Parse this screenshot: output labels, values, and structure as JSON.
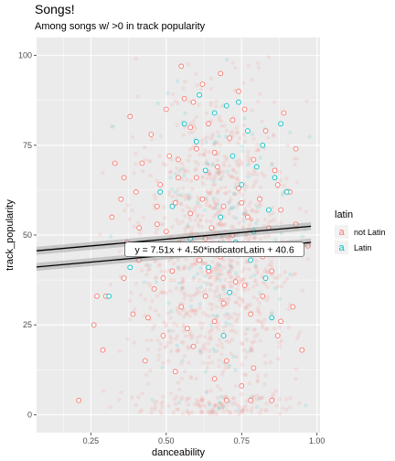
{
  "chart_data": {
    "type": "scatter",
    "title": "Songs!",
    "subtitle": "Among songs w/ >0 in track popularity",
    "xlabel": "danceability",
    "ylabel": "track_popularity",
    "xlim": [
      0.07,
      1.01
    ],
    "ylim": [
      -5,
      105
    ],
    "x_ticks": [
      0.25,
      0.5,
      0.75,
      1.0
    ],
    "x_tick_labels": [
      "0.25",
      "0.50",
      "0.75",
      "1.00"
    ],
    "y_ticks": [
      0,
      25,
      50,
      75,
      100
    ],
    "y_tick_labels": [
      "0",
      "25",
      "50",
      "75",
      "100"
    ],
    "grid": true,
    "background": "#ebebeb",
    "legend": {
      "title": "latin",
      "placement": "right",
      "entries": [
        {
          "label": "not Latin",
          "glyph": "a",
          "color": "#F8766D"
        },
        {
          "label": "Latin",
          "glyph": "a",
          "color": "#00BFC4"
        }
      ]
    },
    "series": [
      {
        "name": "not Latin",
        "color": "#F8766D",
        "regression": {
          "slope": 7.51,
          "intercept": 40.6,
          "x_range": [
            0.07,
            0.98
          ]
        }
      },
      {
        "name": "Latin",
        "color": "#00BFC4",
        "regression": {
          "slope": 7.51,
          "intercept": 45.1,
          "x_range": [
            0.07,
            0.98
          ]
        }
      }
    ],
    "annotation": {
      "text": "y = 7.51x + 4.50*indicatorLatin + 40.6",
      "x": 0.66,
      "y": 46
    },
    "points_not_latin": [
      [
        0.21,
        4
      ],
      [
        0.26,
        25
      ],
      [
        0.27,
        33
      ],
      [
        0.29,
        18
      ],
      [
        0.3,
        33
      ],
      [
        0.32,
        55
      ],
      [
        0.33,
        70
      ],
      [
        0.35,
        60
      ],
      [
        0.36,
        38
      ],
      [
        0.37,
        48
      ],
      [
        0.38,
        83
      ],
      [
        0.39,
        28
      ],
      [
        0.4,
        62
      ],
      [
        0.41,
        52
      ],
      [
        0.42,
        70
      ],
      [
        0.43,
        15
      ],
      [
        0.44,
        45
      ],
      [
        0.45,
        78
      ],
      [
        0.46,
        35
      ],
      [
        0.47,
        58
      ],
      [
        0.48,
        64
      ],
      [
        0.49,
        22
      ],
      [
        0.5,
        51
      ],
      [
        0.51,
        72
      ],
      [
        0.52,
        40
      ],
      [
        0.53,
        12
      ],
      [
        0.54,
        66
      ],
      [
        0.55,
        30
      ],
      [
        0.56,
        88
      ],
      [
        0.57,
        47
      ],
      [
        0.58,
        56
      ],
      [
        0.59,
        19
      ],
      [
        0.6,
        74
      ],
      [
        0.61,
        43
      ],
      [
        0.62,
        60
      ],
      [
        0.63,
        33
      ],
      [
        0.64,
        81
      ],
      [
        0.65,
        52
      ],
      [
        0.66,
        26
      ],
      [
        0.67,
        69
      ],
      [
        0.68,
        44
      ],
      [
        0.69,
        58
      ],
      [
        0.7,
        15
      ],
      [
        0.71,
        77
      ],
      [
        0.72,
        50
      ],
      [
        0.73,
        37
      ],
      [
        0.74,
        63
      ],
      [
        0.75,
        8
      ],
      [
        0.76,
        85
      ],
      [
        0.77,
        55
      ],
      [
        0.78,
        28
      ],
      [
        0.79,
        71
      ],
      [
        0.8,
        46
      ],
      [
        0.81,
        60
      ],
      [
        0.82,
        33
      ],
      [
        0.83,
        79
      ],
      [
        0.84,
        52
      ],
      [
        0.85,
        40
      ],
      [
        0.86,
        68
      ],
      [
        0.87,
        22
      ],
      [
        0.88,
        57
      ],
      [
        0.89,
        84
      ],
      [
        0.9,
        45
      ],
      [
        0.91,
        62
      ],
      [
        0.92,
        30
      ],
      [
        0.93,
        74
      ],
      [
        0.95,
        18
      ],
      [
        0.97,
        47
      ],
      [
        0.55,
        97
      ],
      [
        0.62,
        92
      ],
      [
        0.68,
        95
      ],
      [
        0.74,
        90
      ],
      [
        0.5,
        85
      ],
      [
        0.58,
        80
      ],
      [
        0.72,
        82
      ],
      [
        0.66,
        73
      ],
      [
        0.6,
        66
      ],
      [
        0.53,
        59
      ],
      [
        0.47,
        53
      ],
      [
        0.44,
        27
      ],
      [
        0.7,
        4
      ],
      [
        0.78,
        4
      ],
      [
        0.85,
        4
      ],
      [
        0.64,
        40
      ],
      [
        0.76,
        36
      ],
      [
        0.82,
        44
      ],
      [
        0.57,
        24
      ],
      [
        0.69,
        31
      ],
      [
        0.49,
        38
      ],
      [
        0.63,
        49
      ],
      [
        0.75,
        59
      ],
      [
        0.87,
        64
      ],
      [
        0.54,
        71
      ],
      [
        0.66,
        10
      ],
      [
        0.79,
        13
      ],
      [
        0.88,
        26
      ],
      [
        0.93,
        53
      ],
      [
        0.41,
        43
      ],
      [
        0.36,
        66
      ],
      [
        0.59,
        87
      ]
    ],
    "points_latin": [
      [
        0.31,
        33
      ],
      [
        0.38,
        41
      ],
      [
        0.48,
        62
      ],
      [
        0.52,
        58
      ],
      [
        0.56,
        81
      ],
      [
        0.6,
        76
      ],
      [
        0.63,
        68
      ],
      [
        0.66,
        84
      ],
      [
        0.68,
        55
      ],
      [
        0.7,
        86
      ],
      [
        0.72,
        72
      ],
      [
        0.73,
        48
      ],
      [
        0.75,
        64
      ],
      [
        0.77,
        79
      ],
      [
        0.78,
        43
      ],
      [
        0.8,
        69
      ],
      [
        0.82,
        75
      ],
      [
        0.84,
        57
      ],
      [
        0.86,
        66
      ],
      [
        0.88,
        81
      ],
      [
        0.9,
        62
      ],
      [
        0.64,
        41
      ],
      [
        0.71,
        34
      ],
      [
        0.79,
        51
      ],
      [
        0.83,
        38
      ],
      [
        0.58,
        49
      ],
      [
        0.74,
        87
      ],
      [
        0.69,
        22
      ],
      [
        0.85,
        27
      ],
      [
        0.61,
        89
      ]
    ]
  }
}
